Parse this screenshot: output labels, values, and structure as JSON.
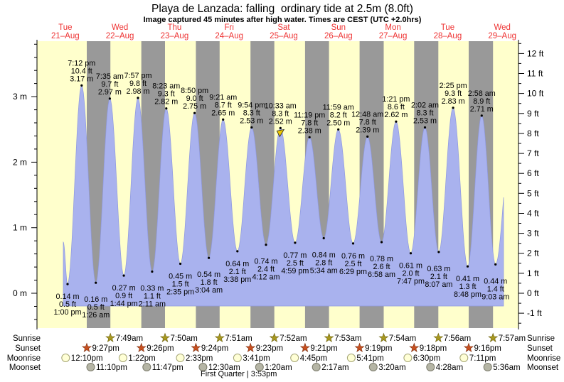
{
  "title": "Playa de Lanzada: falling  ordinary tide at 2.5m (8.0ft)",
  "subtitle": "Image captured 45 minutes after high water. Times are CEST (UTC +2.0hrs)",
  "colors": {
    "day_band": "#ffffcc",
    "night_band": "#999999",
    "water": "#a9b2ee",
    "water_edge": "#8f99e0",
    "day_label": "#ee3333",
    "sunrise_star": "#a8981f",
    "sunset_star": "#c85020",
    "moonrise_fill": "#ffffd6",
    "moonrise_stroke": "#a5a575",
    "moonset_fill": "#b5b5a5",
    "moonset_stroke": "#7a7a6a",
    "marker": "#ecc500"
  },
  "chart_data": {
    "type": "area",
    "title": "Playa de Lanzada tide curve",
    "ylabel_left": "meters",
    "ylabel_right": "feet",
    "ylim_m": [
      -0.5,
      3.8
    ],
    "ylim_ft": [
      -1.5,
      12.5
    ],
    "grid": false,
    "x_days": [
      {
        "name": "Tue",
        "date": "21–Aug"
      },
      {
        "name": "Wed",
        "date": "22–Aug"
      },
      {
        "name": "Thu",
        "date": "23–Aug"
      },
      {
        "name": "Fri",
        "date": "24–Aug"
      },
      {
        "name": "Sat",
        "date": "25–Aug"
      },
      {
        "name": "Sun",
        "date": "26–Aug"
      },
      {
        "name": "Mon",
        "date": "27–Aug"
      },
      {
        "name": "Tue",
        "date": "28–Aug"
      },
      {
        "name": "Wed",
        "date": "29–Aug"
      }
    ],
    "y_axis_left_labels": [
      "0 m",
      "1 m",
      "2 m",
      "3 m"
    ],
    "y_axis_right_labels": [
      "-1 ft",
      "0 ft",
      "1 ft",
      "2 ft",
      "3 ft",
      "4 ft",
      "5 ft",
      "6 ft",
      "7 ft",
      "8 ft",
      "9 ft",
      "10 ft",
      "11 ft",
      "12 ft"
    ],
    "extremes": [
      {
        "kind": "low",
        "day": 0,
        "time": "1:00 pm",
        "m": "0.14",
        "ft": "0.5"
      },
      {
        "kind": "high",
        "day": 0,
        "time": "7:12 pm",
        "m": "3.17",
        "ft": "10.4"
      },
      {
        "kind": "low",
        "day": 1,
        "time": "1:26 am",
        "m": "0.16",
        "ft": "0.5"
      },
      {
        "kind": "high",
        "day": 1,
        "time": "7:35 am",
        "m": "2.97",
        "ft": "9.7"
      },
      {
        "kind": "low",
        "day": 1,
        "time": "1:44 pm",
        "m": "0.27",
        "ft": "0.9"
      },
      {
        "kind": "high",
        "day": 1,
        "time": "7:57 pm",
        "m": "2.98",
        "ft": "9.8"
      },
      {
        "kind": "low",
        "day": 2,
        "time": "2:11 am",
        "m": "0.33",
        "ft": "1.1"
      },
      {
        "kind": "high",
        "day": 2,
        "time": "8:23 am",
        "m": "2.82",
        "ft": "9.3"
      },
      {
        "kind": "low",
        "day": 2,
        "time": "2:35 pm",
        "m": "0.45",
        "ft": "1.5"
      },
      {
        "kind": "high",
        "day": 2,
        "time": "8:50 pm",
        "m": "2.75",
        "ft": "9.0"
      },
      {
        "kind": "low",
        "day": 3,
        "time": "3:04 am",
        "m": "0.54",
        "ft": "1.8"
      },
      {
        "kind": "high",
        "day": 3,
        "time": "9:21 am",
        "m": "2.65",
        "ft": "8.7"
      },
      {
        "kind": "low",
        "day": 3,
        "time": "3:38 pm",
        "m": "0.64",
        "ft": "2.1"
      },
      {
        "kind": "high",
        "day": 3,
        "time": "9:54 pm",
        "m": "2.53",
        "ft": "8.3"
      },
      {
        "kind": "low",
        "day": 4,
        "time": "4:12 am",
        "m": "0.74",
        "ft": "2.4"
      },
      {
        "kind": "high",
        "day": 4,
        "time": "10:33 am",
        "m": "2.52",
        "ft": "8.3",
        "marker": true
      },
      {
        "kind": "low",
        "day": 4,
        "time": "4:59 pm",
        "m": "0.77",
        "ft": "2.5"
      },
      {
        "kind": "high",
        "day": 4,
        "time": "11:19 pm",
        "m": "2.38",
        "ft": "7.8"
      },
      {
        "kind": "low",
        "day": 5,
        "time": "5:34 am",
        "m": "0.84",
        "ft": "2.8"
      },
      {
        "kind": "high",
        "day": 5,
        "time": "11:59 am",
        "m": "2.50",
        "ft": "8.2"
      },
      {
        "kind": "low",
        "day": 5,
        "time": "6:29 pm",
        "m": "0.76",
        "ft": "2.5"
      },
      {
        "kind": "high",
        "day": 6,
        "time": "12:48 am",
        "m": "2.39",
        "ft": "7.8"
      },
      {
        "kind": "low",
        "day": 6,
        "time": "6:58 am",
        "m": "0.78",
        "ft": "2.6"
      },
      {
        "kind": "high",
        "day": 6,
        "time": "1:21 pm",
        "m": "2.62",
        "ft": "8.6"
      },
      {
        "kind": "low",
        "day": 6,
        "time": "7:47 pm",
        "m": "0.61",
        "ft": "2.0"
      },
      {
        "kind": "high",
        "day": 7,
        "time": "2:02 am",
        "m": "2.53",
        "ft": "8.3"
      },
      {
        "kind": "low",
        "day": 7,
        "time": "8:07 am",
        "m": "0.63",
        "ft": "2.1"
      },
      {
        "kind": "high",
        "day": 7,
        "time": "2:25 pm",
        "m": "2.83",
        "ft": "9.3"
      },
      {
        "kind": "low",
        "day": 7,
        "time": "8:48 pm",
        "m": "0.41",
        "ft": "1.3"
      },
      {
        "kind": "high",
        "day": 8,
        "time": "2:58 am",
        "m": "2.71",
        "ft": "8.9"
      },
      {
        "kind": "low",
        "day": 8,
        "time": "9:03 am",
        "m": "0.44",
        "ft": "1.4"
      }
    ],
    "current_marker": {
      "at_time": "10:33 am",
      "meaning": "image captured 45 minutes after high water"
    }
  },
  "astro": {
    "row_labels": [
      "Sunrise",
      "Sunset",
      "Moonrise",
      "Moonset"
    ],
    "sunrise": [
      {
        "day": 1,
        "time": "7:49am"
      },
      {
        "day": 2,
        "time": "7:50am"
      },
      {
        "day": 3,
        "time": "7:51am"
      },
      {
        "day": 4,
        "time": "7:52am"
      },
      {
        "day": 5,
        "time": "7:53am"
      },
      {
        "day": 6,
        "time": "7:54am"
      },
      {
        "day": 7,
        "time": "7:56am"
      },
      {
        "day": 8,
        "time": "7:57am"
      }
    ],
    "sunset": [
      {
        "day": 0,
        "time": "9:27pm"
      },
      {
        "day": 1,
        "time": "9:26pm"
      },
      {
        "day": 2,
        "time": "9:24pm"
      },
      {
        "day": 3,
        "time": "9:23pm"
      },
      {
        "day": 4,
        "time": "9:21pm"
      },
      {
        "day": 5,
        "time": "9:19pm"
      },
      {
        "day": 6,
        "time": "9:18pm"
      },
      {
        "day": 7,
        "time": "9:16pm"
      }
    ],
    "moonrise": [
      {
        "day": 0,
        "time": "12:10pm"
      },
      {
        "day": 1,
        "time": "1:22pm"
      },
      {
        "day": 2,
        "time": "2:33pm"
      },
      {
        "day": 3,
        "time": "3:41pm"
      },
      {
        "day": 4,
        "time": "4:45pm"
      },
      {
        "day": 5,
        "time": "5:41pm"
      },
      {
        "day": 6,
        "time": "6:30pm"
      },
      {
        "day": 7,
        "time": "7:11pm"
      }
    ],
    "moonset": [
      {
        "day": 0,
        "time": "11:10pm"
      },
      {
        "day": 1,
        "time": "11:47pm"
      },
      {
        "day": 3,
        "time": "12:30am"
      },
      {
        "day": 4,
        "time": "1:20am"
      },
      {
        "day": 5,
        "time": "2:17am"
      },
      {
        "day": 6,
        "time": "3:20am"
      },
      {
        "day": 7,
        "time": "4:28am"
      },
      {
        "day": 8,
        "time": "5:36am"
      }
    ],
    "phase_note": "First Quarter | 3:53pm"
  }
}
